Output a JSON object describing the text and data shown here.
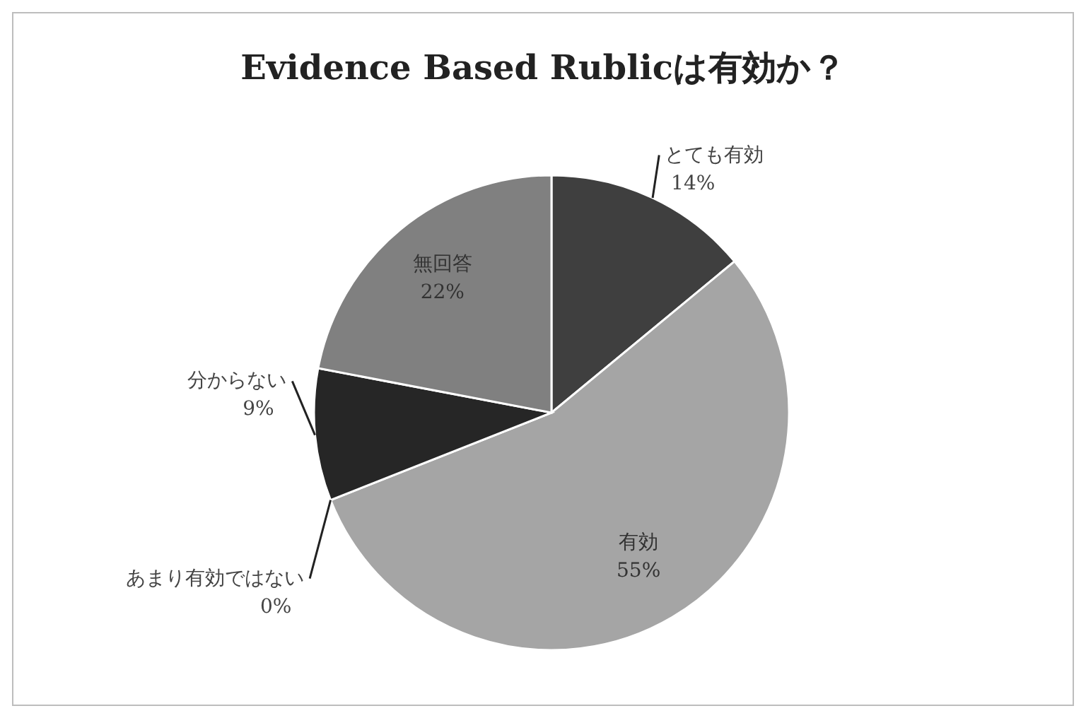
{
  "chart_data": {
    "type": "pie",
    "title": "Evidence Based Rublicは有効か？",
    "categories": [
      "とても有効",
      "有効",
      "あまり有効ではない",
      "分からない",
      "無回答"
    ],
    "values": [
      14,
      55,
      0,
      9,
      22
    ],
    "colors": [
      "#3f3f3f",
      "#a5a5a5",
      null,
      "#262626",
      "#808080"
    ],
    "value_labels": [
      "14%",
      "55%",
      "0%",
      "9%",
      "22%"
    ]
  }
}
